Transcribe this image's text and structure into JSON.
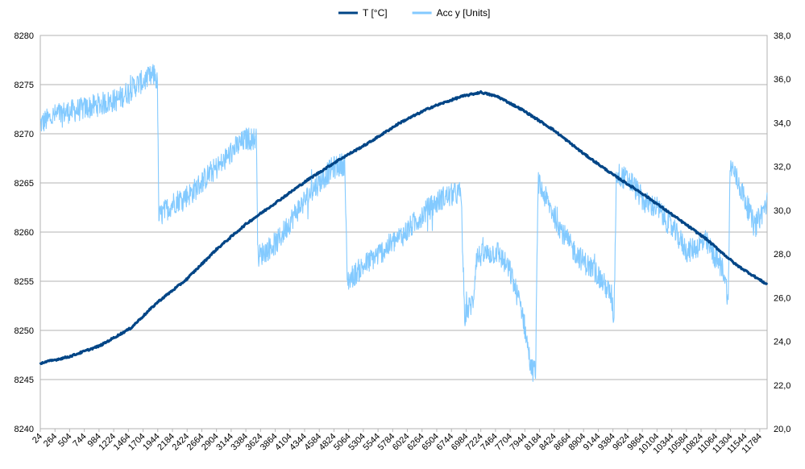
{
  "chart_data": {
    "type": "line",
    "title": "",
    "legend": {
      "position": "top-center"
    },
    "grid": true,
    "x": {
      "min": 24,
      "max": 11904,
      "ticks": [
        24,
        264,
        504,
        744,
        984,
        1224,
        1464,
        1704,
        1944,
        2184,
        2424,
        2664,
        2904,
        3144,
        3384,
        3624,
        3864,
        4104,
        4344,
        4584,
        4824,
        5064,
        5304,
        5544,
        5784,
        6024,
        6264,
        6504,
        6744,
        6984,
        7224,
        7464,
        7704,
        7944,
        8184,
        8424,
        8664,
        8904,
        9144,
        9384,
        9624,
        9864,
        10104,
        10344,
        10584,
        10824,
        11064,
        11304,
        11544,
        11784
      ]
    },
    "y_left": {
      "min": 8240,
      "max": 8280,
      "ticks": [
        "8240",
        "8245",
        "8250",
        "8255",
        "8260",
        "8265",
        "8270",
        "8275",
        "8280"
      ]
    },
    "y_right": {
      "min": 20,
      "max": 38,
      "ticks": [
        "20,0",
        "22,0",
        "24,0",
        "26,0",
        "28,0",
        "30,0",
        "32,0",
        "34,0",
        "36,0",
        "38,0"
      ]
    },
    "series": [
      {
        "name": "T [°C]",
        "axis": "right",
        "color": "#004586",
        "points": [
          [
            24,
            23.0
          ],
          [
            500,
            23.3
          ],
          [
            1000,
            23.8
          ],
          [
            1500,
            24.6
          ],
          [
            1944,
            25.8
          ],
          [
            2400,
            26.8
          ],
          [
            2900,
            28.2
          ],
          [
            3400,
            29.4
          ],
          [
            3900,
            30.4
          ],
          [
            4400,
            31.4
          ],
          [
            4900,
            32.3
          ],
          [
            5400,
            33.1
          ],
          [
            5900,
            34.0
          ],
          [
            6400,
            34.7
          ],
          [
            6900,
            35.2
          ],
          [
            7224,
            35.4
          ],
          [
            7500,
            35.2
          ],
          [
            7900,
            34.6
          ],
          [
            8400,
            33.7
          ],
          [
            8900,
            32.6
          ],
          [
            9400,
            31.6
          ],
          [
            9900,
            30.7
          ],
          [
            10400,
            29.7
          ],
          [
            10900,
            28.7
          ],
          [
            11400,
            27.5
          ],
          [
            11904,
            26.6
          ]
        ]
      },
      {
        "name": "Acc y [Units]",
        "axis": "left",
        "color": "#83caff",
        "points": [
          [
            24,
            8271
          ],
          [
            300,
            8272
          ],
          [
            700,
            8272.5
          ],
          [
            1000,
            8273
          ],
          [
            1300,
            8273.5
          ],
          [
            1600,
            8275
          ],
          [
            1900,
            8276
          ],
          [
            1940,
            8275
          ],
          [
            1960,
            8261.5
          ],
          [
            2200,
            8263
          ],
          [
            2500,
            8264
          ],
          [
            2800,
            8266
          ],
          [
            3000,
            8267
          ],
          [
            3200,
            8268.5
          ],
          [
            3400,
            8269.5
          ],
          [
            3560,
            8269.5
          ],
          [
            3580,
            8257.5
          ],
          [
            3900,
            8259
          ],
          [
            4200,
            8262
          ],
          [
            4500,
            8264.5
          ],
          [
            4800,
            8266.5
          ],
          [
            5000,
            8267
          ],
          [
            5040,
            8255
          ],
          [
            5300,
            8256.5
          ],
          [
            5700,
            8258.5
          ],
          [
            6000,
            8260
          ],
          [
            6300,
            8262
          ],
          [
            6600,
            8263.5
          ],
          [
            6900,
            8264
          ],
          [
            6960,
            8251.5
          ],
          [
            7100,
            8253
          ],
          [
            7150,
            8257.5
          ],
          [
            7500,
            8258
          ],
          [
            7700,
            8256
          ],
          [
            7900,
            8252
          ],
          [
            8050,
            8246
          ],
          [
            8120,
            8246
          ],
          [
            8160,
            8265
          ],
          [
            8400,
            8262
          ],
          [
            8600,
            8259.5
          ],
          [
            8700,
            8258.5
          ],
          [
            8900,
            8257
          ],
          [
            9100,
            8256
          ],
          [
            9360,
            8253.5
          ],
          [
            9400,
            8251
          ],
          [
            9440,
            8266
          ],
          [
            9700,
            8265
          ],
          [
            9900,
            8263
          ],
          [
            10100,
            8262.5
          ],
          [
            10400,
            8260
          ],
          [
            10600,
            8258
          ],
          [
            10900,
            8259
          ],
          [
            11200,
            8256
          ],
          [
            11270,
            8253
          ],
          [
            11300,
            8267
          ],
          [
            11500,
            8264
          ],
          [
            11700,
            8260.5
          ],
          [
            11904,
            8263
          ]
        ]
      }
    ]
  }
}
